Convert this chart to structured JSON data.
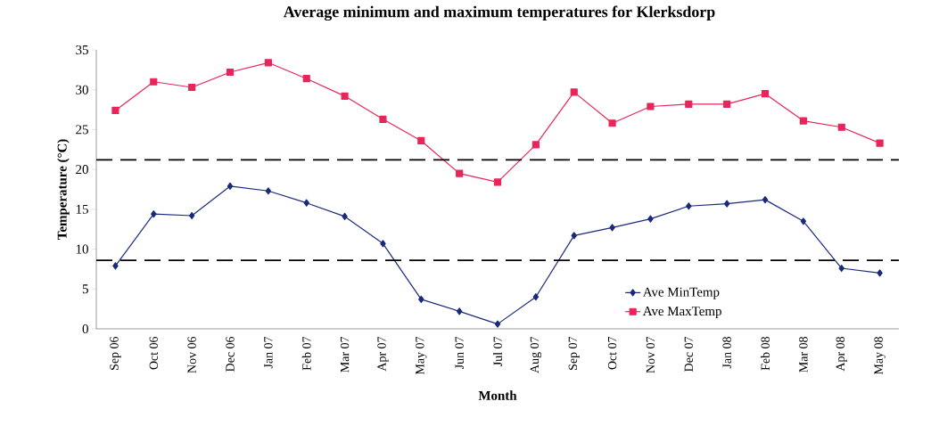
{
  "chart_data": {
    "type": "line",
    "title": "Average minimum and maximum temperatures for Klerksdorp",
    "xlabel": "Month",
    "ylabel": "Temperature (°C)",
    "categories": [
      "Sep 06",
      "Oct 06",
      "Nov 06",
      "Dec 06",
      "Jan 07",
      "Feb 07",
      "Mar 07",
      "Apr 07",
      "May 07",
      "Jun 07",
      "Jul 07",
      "Aug 07",
      "Sep 07",
      "Oct 07",
      "Nov 07",
      "Dec 07",
      "Jan 08",
      "Feb 08",
      "Mar 08",
      "Apr 08",
      "May 08"
    ],
    "series": [
      {
        "name": "Ave MinTemp",
        "color": "#1a2a7a",
        "marker": "diamond",
        "values": [
          7.9,
          14.4,
          14.2,
          17.9,
          17.3,
          15.8,
          14.1,
          10.7,
          3.7,
          2.2,
          0.6,
          4.0,
          11.7,
          12.7,
          13.8,
          15.4,
          15.7,
          16.2,
          13.5,
          7.6,
          7.0
        ]
      },
      {
        "name": "Ave MaxTemp",
        "color": "#e8255a",
        "marker": "square",
        "values": [
          27.4,
          31.0,
          30.3,
          32.2,
          33.4,
          31.4,
          29.2,
          26.3,
          23.6,
          19.5,
          18.4,
          23.1,
          29.7,
          25.8,
          27.9,
          28.2,
          28.2,
          29.5,
          26.1,
          25.3,
          23.3
        ]
      }
    ],
    "ylim": [
      0,
      35
    ],
    "yticks": [
      0,
      5,
      10,
      15,
      20,
      25,
      30,
      35
    ],
    "grid": false,
    "legend": "bottom right",
    "line_style": "solid",
    "ref_lines": [
      {
        "axis": "y",
        "value": 21.2,
        "color": "#000000",
        "line_style": "dashed"
      },
      {
        "axis": "y",
        "value": 8.6,
        "color": "#000000",
        "line_style": "dashed"
      }
    ]
  }
}
